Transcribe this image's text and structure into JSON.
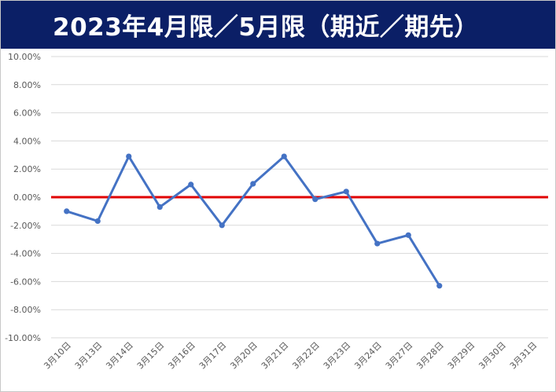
{
  "title": "2023年4月限／5月限（期近／期先）",
  "colors": {
    "header_bg": "#0b1f66",
    "header_text": "#ffffff",
    "series": "#4472c4",
    "zero_line": "#e00000",
    "grid": "#d9d9d9",
    "tick_text": "#595959"
  },
  "chart_data": {
    "type": "line",
    "title": "2023年4月限／5月限（期近／期先）",
    "categories": [
      "3月10日",
      "3月13日",
      "3月14日",
      "3月15日",
      "3月16日",
      "3月17日",
      "3月20日",
      "3月21日",
      "3月22日",
      "3月23日",
      "3月24日",
      "3月27日",
      "3月28日",
      "3月29日",
      "3月30日",
      "3月31日"
    ],
    "y_ticks": [
      "10.00%",
      "8.00%",
      "6.00%",
      "4.00%",
      "2.00%",
      "0.00%",
      "-2.00%",
      "-4.00%",
      "-6.00%",
      "-8.00%",
      "-10.00%"
    ],
    "ylim": [
      -10,
      10
    ],
    "y_unit": "%",
    "grid": true,
    "legend": "none",
    "series": [
      {
        "values": [
          -1.0,
          -1.7,
          2.9,
          -0.7,
          0.9,
          -2.0,
          0.95,
          2.9,
          -0.15,
          0.4,
          -3.3,
          -2.7,
          -6.3,
          null,
          null,
          null
        ]
      }
    ],
    "reference_line": {
      "y": 0
    }
  }
}
